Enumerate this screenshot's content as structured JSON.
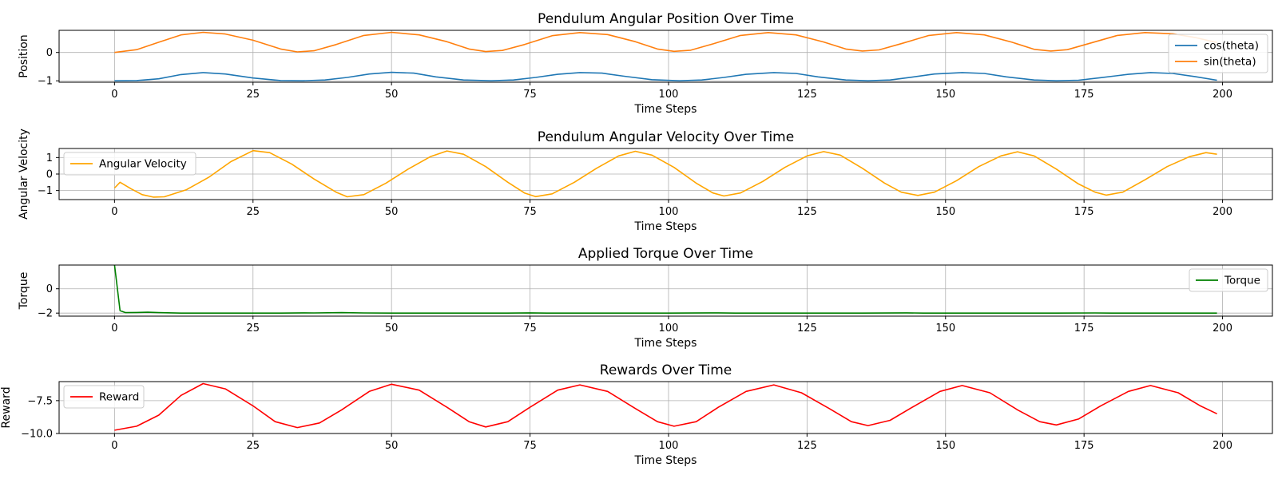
{
  "chart_data": [
    {
      "type": "line",
      "title": "Pendulum Angular Position Over Time",
      "xlabel": "Time Steps",
      "ylabel": "Position",
      "xlim": [
        -10,
        209
      ],
      "ylim": [
        -1.05,
        0.78
      ],
      "xticks": [
        0,
        25,
        50,
        75,
        100,
        125,
        150,
        175,
        200
      ],
      "xtick_labels": [
        "0",
        "25",
        "50",
        "75",
        "100",
        "125",
        "150",
        "175",
        "200"
      ],
      "yticks": [
        -1,
        0
      ],
      "ytick_labels": [
        "−1",
        "0"
      ],
      "grid": true,
      "legend": "upper right",
      "series": [
        {
          "name": "cos(theta)",
          "color": "#1f77b4",
          "points": [
            [
              0,
              -1.0
            ],
            [
              4,
              -0.99
            ],
            [
              8,
              -0.93
            ],
            [
              12,
              -0.78
            ],
            [
              16,
              -0.71
            ],
            [
              20,
              -0.76
            ],
            [
              25,
              -0.9
            ],
            [
              30,
              -0.99
            ],
            [
              34,
              -1.0
            ],
            [
              38,
              -0.97
            ],
            [
              42,
              -0.88
            ],
            [
              46,
              -0.76
            ],
            [
              50,
              -0.7
            ],
            [
              54,
              -0.73
            ],
            [
              58,
              -0.86
            ],
            [
              63,
              -0.97
            ],
            [
              68,
              -1.0
            ],
            [
              72,
              -0.97
            ],
            [
              76,
              -0.88
            ],
            [
              80,
              -0.77
            ],
            [
              84,
              -0.71
            ],
            [
              88,
              -0.73
            ],
            [
              92,
              -0.84
            ],
            [
              97,
              -0.96
            ],
            [
              102,
              -1.0
            ],
            [
              106,
              -0.97
            ],
            [
              110,
              -0.88
            ],
            [
              114,
              -0.77
            ],
            [
              119,
              -0.71
            ],
            [
              123,
              -0.74
            ],
            [
              127,
              -0.86
            ],
            [
              132,
              -0.97
            ],
            [
              136,
              -1.0
            ],
            [
              140,
              -0.97
            ],
            [
              144,
              -0.87
            ],
            [
              148,
              -0.76
            ],
            [
              153,
              -0.71
            ],
            [
              157,
              -0.74
            ],
            [
              161,
              -0.86
            ],
            [
              166,
              -0.97
            ],
            [
              170,
              -1.0
            ],
            [
              174,
              -0.98
            ],
            [
              178,
              -0.89
            ],
            [
              183,
              -0.77
            ],
            [
              187,
              -0.71
            ],
            [
              191,
              -0.74
            ],
            [
              195,
              -0.85
            ],
            [
              199,
              -0.98
            ]
          ]
        },
        {
          "name": "sin(theta)",
          "color": "#ff7f0e",
          "points": [
            [
              0,
              0.0
            ],
            [
              4,
              0.1
            ],
            [
              8,
              0.36
            ],
            [
              12,
              0.62
            ],
            [
              16,
              0.71
            ],
            [
              20,
              0.65
            ],
            [
              25,
              0.43
            ],
            [
              30,
              0.12
            ],
            [
              33,
              0.02
            ],
            [
              36,
              0.06
            ],
            [
              40,
              0.28
            ],
            [
              45,
              0.6
            ],
            [
              50,
              0.71
            ],
            [
              55,
              0.62
            ],
            [
              60,
              0.38
            ],
            [
              64,
              0.12
            ],
            [
              67,
              0.03
            ],
            [
              70,
              0.07
            ],
            [
              74,
              0.28
            ],
            [
              79,
              0.59
            ],
            [
              84,
              0.7
            ],
            [
              89,
              0.63
            ],
            [
              94,
              0.38
            ],
            [
              98,
              0.12
            ],
            [
              101,
              0.04
            ],
            [
              104,
              0.08
            ],
            [
              108,
              0.3
            ],
            [
              113,
              0.6
            ],
            [
              118,
              0.7
            ],
            [
              123,
              0.62
            ],
            [
              128,
              0.37
            ],
            [
              132,
              0.12
            ],
            [
              135,
              0.05
            ],
            [
              138,
              0.09
            ],
            [
              142,
              0.31
            ],
            [
              147,
              0.6
            ],
            [
              152,
              0.7
            ],
            [
              157,
              0.62
            ],
            [
              162,
              0.36
            ],
            [
              166,
              0.11
            ],
            [
              169,
              0.05
            ],
            [
              172,
              0.1
            ],
            [
              176,
              0.32
            ],
            [
              181,
              0.6
            ],
            [
              186,
              0.7
            ],
            [
              191,
              0.66
            ],
            [
              195,
              0.53
            ],
            [
              199,
              0.35
            ]
          ]
        }
      ]
    },
    {
      "type": "line",
      "title": "Pendulum Angular Velocity Over Time",
      "xlabel": "Time Steps",
      "ylabel": "Angular Velocity",
      "xlim": [
        -10,
        209
      ],
      "ylim": [
        -1.55,
        1.55
      ],
      "xticks": [
        0,
        25,
        50,
        75,
        100,
        125,
        150,
        175,
        200
      ],
      "xtick_labels": [
        "0",
        "25",
        "50",
        "75",
        "100",
        "125",
        "150",
        "175",
        "200"
      ],
      "yticks": [
        -1,
        0,
        1
      ],
      "ytick_labels": [
        "−1",
        "0",
        "1"
      ],
      "grid": true,
      "legend": "upper left",
      "series": [
        {
          "name": "Angular Velocity",
          "color": "#ffa500",
          "points": [
            [
              0,
              -0.85
            ],
            [
              1,
              -0.5
            ],
            [
              3,
              -0.9
            ],
            [
              5,
              -1.25
            ],
            [
              7,
              -1.4
            ],
            [
              9,
              -1.38
            ],
            [
              13,
              -0.95
            ],
            [
              17,
              -0.2
            ],
            [
              21,
              0.75
            ],
            [
              25,
              1.42
            ],
            [
              28,
              1.3
            ],
            [
              32,
              0.6
            ],
            [
              36,
              -0.3
            ],
            [
              40,
              -1.1
            ],
            [
              42,
              -1.38
            ],
            [
              45,
              -1.25
            ],
            [
              49,
              -0.55
            ],
            [
              53,
              0.3
            ],
            [
              57,
              1.05
            ],
            [
              60,
              1.4
            ],
            [
              63,
              1.2
            ],
            [
              67,
              0.45
            ],
            [
              71,
              -0.5
            ],
            [
              74,
              -1.15
            ],
            [
              76,
              -1.37
            ],
            [
              79,
              -1.2
            ],
            [
              83,
              -0.5
            ],
            [
              87,
              0.35
            ],
            [
              91,
              1.1
            ],
            [
              94,
              1.38
            ],
            [
              97,
              1.15
            ],
            [
              101,
              0.4
            ],
            [
              105,
              -0.55
            ],
            [
              108,
              -1.15
            ],
            [
              110,
              -1.33
            ],
            [
              113,
              -1.15
            ],
            [
              117,
              -0.45
            ],
            [
              121,
              0.4
            ],
            [
              125,
              1.1
            ],
            [
              128,
              1.36
            ],
            [
              131,
              1.15
            ],
            [
              135,
              0.35
            ],
            [
              139,
              -0.55
            ],
            [
              142,
              -1.1
            ],
            [
              145,
              -1.3
            ],
            [
              148,
              -1.1
            ],
            [
              152,
              -0.4
            ],
            [
              156,
              0.45
            ],
            [
              160,
              1.1
            ],
            [
              163,
              1.35
            ],
            [
              166,
              1.1
            ],
            [
              170,
              0.3
            ],
            [
              174,
              -0.6
            ],
            [
              177,
              -1.1
            ],
            [
              179,
              -1.28
            ],
            [
              182,
              -1.1
            ],
            [
              186,
              -0.35
            ],
            [
              190,
              0.45
            ],
            [
              194,
              1.05
            ],
            [
              197,
              1.3
            ],
            [
              199,
              1.2
            ]
          ]
        }
      ]
    },
    {
      "type": "line",
      "title": "Applied Torque Over Time",
      "xlabel": "Time Steps",
      "ylabel": "Torque",
      "xlim": [
        -10,
        209
      ],
      "ylim": [
        -2.25,
        1.95
      ],
      "xticks": [
        0,
        25,
        50,
        75,
        100,
        125,
        150,
        175,
        200
      ],
      "xtick_labels": [
        "0",
        "25",
        "50",
        "75",
        "100",
        "125",
        "150",
        "175",
        "200"
      ],
      "yticks": [
        -2,
        0
      ],
      "ytick_labels": [
        "−2",
        "0"
      ],
      "grid": true,
      "legend": "upper right",
      "series": [
        {
          "name": "Torque",
          "color": "#008000",
          "points": [
            [
              0,
              1.95
            ],
            [
              1,
              -1.8
            ],
            [
              2,
              -1.96
            ],
            [
              4,
              -1.95
            ],
            [
              6,
              -1.93
            ],
            [
              8,
              -1.96
            ],
            [
              12,
              -2.0
            ],
            [
              20,
              -2.0
            ],
            [
              30,
              -2.0
            ],
            [
              34,
              -1.98
            ],
            [
              36,
              -1.99
            ],
            [
              41,
              -1.96
            ],
            [
              45,
              -1.99
            ],
            [
              50,
              -2.0
            ],
            [
              60,
              -2.0
            ],
            [
              70,
              -2.0
            ],
            [
              75,
              -1.98
            ],
            [
              78,
              -2.0
            ],
            [
              90,
              -2.0
            ],
            [
              100,
              -2.0
            ],
            [
              109,
              -1.98
            ],
            [
              112,
              -2.0
            ],
            [
              125,
              -2.0
            ],
            [
              135,
              -2.0
            ],
            [
              143,
              -1.98
            ],
            [
              146,
              -2.0
            ],
            [
              160,
              -2.0
            ],
            [
              170,
              -2.0
            ],
            [
              177,
              -1.99
            ],
            [
              180,
              -2.0
            ],
            [
              190,
              -2.0
            ],
            [
              199,
              -2.0
            ]
          ]
        }
      ]
    },
    {
      "type": "line",
      "title": "Rewards Over Time",
      "xlabel": "Time Steps",
      "ylabel": "Reward",
      "xlim": [
        -10,
        209
      ],
      "ylim": [
        -10.0,
        -6.05
      ],
      "xticks": [
        0,
        25,
        50,
        75,
        100,
        125,
        150,
        175,
        200
      ],
      "xtick_labels": [
        "0",
        "25",
        "50",
        "75",
        "100",
        "125",
        "150",
        "175",
        "200"
      ],
      "yticks": [
        -10.0,
        -7.5
      ],
      "ytick_labels": [
        "−10.0",
        "−7.5"
      ],
      "grid": true,
      "legend": "upper left",
      "series": [
        {
          "name": "Reward",
          "color": "#ff0000",
          "points": [
            [
              0,
              -9.75
            ],
            [
              4,
              -9.45
            ],
            [
              8,
              -8.6
            ],
            [
              12,
              -7.1
            ],
            [
              16,
              -6.2
            ],
            [
              20,
              -6.6
            ],
            [
              25,
              -7.9
            ],
            [
              29,
              -9.1
            ],
            [
              33,
              -9.55
            ],
            [
              37,
              -9.2
            ],
            [
              41,
              -8.2
            ],
            [
              46,
              -6.8
            ],
            [
              50,
              -6.25
            ],
            [
              55,
              -6.7
            ],
            [
              60,
              -8.0
            ],
            [
              64,
              -9.1
            ],
            [
              67,
              -9.5
            ],
            [
              71,
              -9.1
            ],
            [
              75,
              -8.0
            ],
            [
              80,
              -6.7
            ],
            [
              84,
              -6.3
            ],
            [
              89,
              -6.8
            ],
            [
              94,
              -8.1
            ],
            [
              98,
              -9.1
            ],
            [
              101,
              -9.45
            ],
            [
              105,
              -9.1
            ],
            [
              109,
              -8.0
            ],
            [
              114,
              -6.8
            ],
            [
              119,
              -6.3
            ],
            [
              124,
              -6.9
            ],
            [
              129,
              -8.1
            ],
            [
              133,
              -9.1
            ],
            [
              136,
              -9.4
            ],
            [
              140,
              -9.0
            ],
            [
              144,
              -8.0
            ],
            [
              149,
              -6.8
            ],
            [
              153,
              -6.35
            ],
            [
              158,
              -6.9
            ],
            [
              163,
              -8.2
            ],
            [
              167,
              -9.1
            ],
            [
              170,
              -9.35
            ],
            [
              174,
              -8.9
            ],
            [
              178,
              -7.9
            ],
            [
              183,
              -6.8
            ],
            [
              187,
              -6.35
            ],
            [
              192,
              -6.9
            ],
            [
              196,
              -7.9
            ],
            [
              199,
              -8.5
            ]
          ]
        }
      ]
    }
  ]
}
